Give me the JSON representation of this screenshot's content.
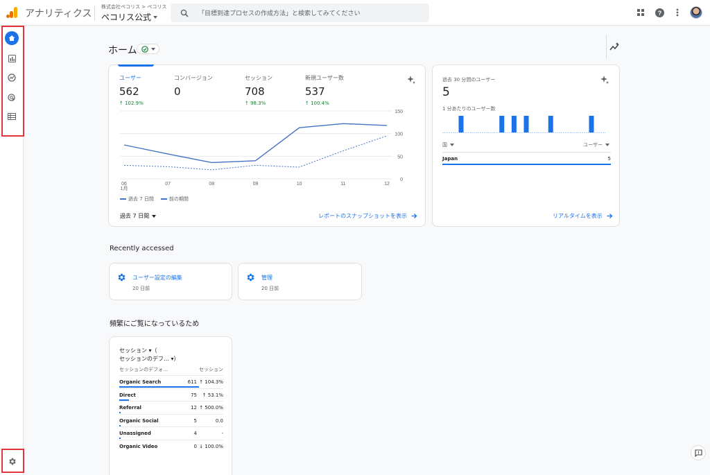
{
  "header": {
    "app_title": "アナリティクス",
    "account_path": "株式会社ペコリス > ペコリス",
    "property_name": "ペコリス公式",
    "search_placeholder": "「目標到達プロセスの作成方法」と検索してみてください"
  },
  "page": {
    "title": "ホーム"
  },
  "summary_card": {
    "metrics": [
      {
        "label": "ユーザー",
        "value": "562",
        "change": "↑ 102.9%"
      },
      {
        "label": "コンバージョン",
        "value": "0",
        "change": ""
      },
      {
        "label": "セッション",
        "value": "708",
        "change": "↑ 98.3%"
      },
      {
        "label": "新規ユーザー数",
        "value": "537",
        "change": "↑ 100.4%"
      }
    ],
    "legend_current": "過去 7 日間",
    "legend_previous": "前の期間",
    "period_select": "過去 7 日間",
    "snapshot_link": "レポートのスナップショットを表示"
  },
  "chart_data": {
    "type": "line",
    "x": [
      "06",
      "07",
      "08",
      "09",
      "10",
      "11",
      "12"
    ],
    "x_sublabel": "1月",
    "y_ticks": [
      "150",
      "100",
      "50",
      "0"
    ],
    "ylim": [
      0,
      150
    ],
    "series": [
      {
        "name": "過去 7 日間",
        "values": [
          75,
          55,
          36,
          40,
          113,
          122,
          118
        ]
      },
      {
        "name": "前の期間",
        "values": [
          30,
          27,
          20,
          30,
          26,
          62,
          95
        ]
      }
    ]
  },
  "realtime_card": {
    "title": "過去 30 分間のユーザー",
    "value": "5",
    "subtitle": "1 分あたりのユーザー数",
    "bar_values": [
      0,
      0,
      0,
      0,
      1,
      0,
      0,
      0,
      0,
      0,
      0,
      0,
      0,
      0,
      1,
      0,
      0,
      1,
      0,
      0,
      1,
      0,
      0,
      0,
      0,
      0,
      1,
      0,
      0,
      0,
      0,
      0,
      0,
      0,
      0,
      0,
      1,
      0,
      0,
      0
    ],
    "col_country": "国",
    "col_users": "ユーザー",
    "rows": [
      {
        "country": "Japan",
        "users": "5"
      }
    ],
    "link": "リアルタイムを表示"
  },
  "recent": {
    "title": "Recently accessed",
    "items": [
      {
        "label": "ユーザー設定の編集",
        "time": "20 日前"
      },
      {
        "label": "管理",
        "time": "20 日前"
      }
    ]
  },
  "frequent": {
    "title": "頻繁にご覧になっているため",
    "card_title_1": "セッション ▾（",
    "card_title_2": "セッションのデフ… ▾）",
    "col_dimension": "セッションのデフォ…",
    "col_metric": "セッション",
    "rows": [
      {
        "name": "Organic Search",
        "value": "611",
        "change": "↑ 104.3%",
        "share": 1.0
      },
      {
        "name": "Direct",
        "value": "75",
        "change": "↑ 53.1%",
        "share": 0.123
      },
      {
        "name": "Referral",
        "value": "12",
        "change": "↑ 500.0%",
        "share": 0.02
      },
      {
        "name": "Organic Social",
        "value": "5",
        "change": "0.0",
        "share": 0.008
      },
      {
        "name": "Unassigned",
        "value": "4",
        "change": "-",
        "share": 0.007
      },
      {
        "name": "Organic Video",
        "value": "0",
        "change": "↓ 100.0%",
        "share": 0
      }
    ]
  }
}
